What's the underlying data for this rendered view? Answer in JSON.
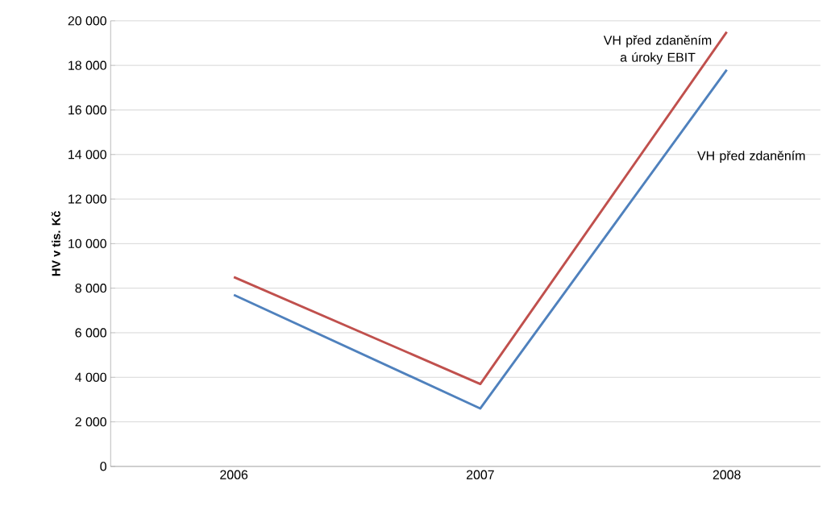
{
  "chart_data": {
    "type": "line",
    "ylabel": "HV v tis. Kč",
    "categories": [
      "2006",
      "2007",
      "2008"
    ],
    "series": [
      {
        "name": "VH před zdaněním a úroky EBIT",
        "color": "#c0504d",
        "values": [
          8500,
          3700,
          19500
        ]
      },
      {
        "name": "VH před zdaněním",
        "color": "#4f81bd",
        "values": [
          7700,
          2600,
          17800
        ]
      }
    ],
    "ylim": [
      0,
      20000
    ],
    "yticks": [
      0,
      {
        "value": 2000,
        "label": "2 000"
      },
      {
        "value": 4000,
        "label": "4 000"
      },
      {
        "value": 6000,
        "label": "6 000"
      },
      {
        "value": 8000,
        "label": "8 000"
      },
      {
        "value": 10000,
        "label": "10 000"
      },
      {
        "value": 12000,
        "label": "12 000"
      },
      {
        "value": 14000,
        "label": "14 000"
      },
      {
        "value": 16000,
        "label": "16 000"
      },
      {
        "value": 18000,
        "label": "18 000"
      },
      {
        "value": 20000,
        "label": "20 000"
      }
    ],
    "grid": "y",
    "legend": false,
    "marker": "none",
    "line_style": "solid"
  }
}
